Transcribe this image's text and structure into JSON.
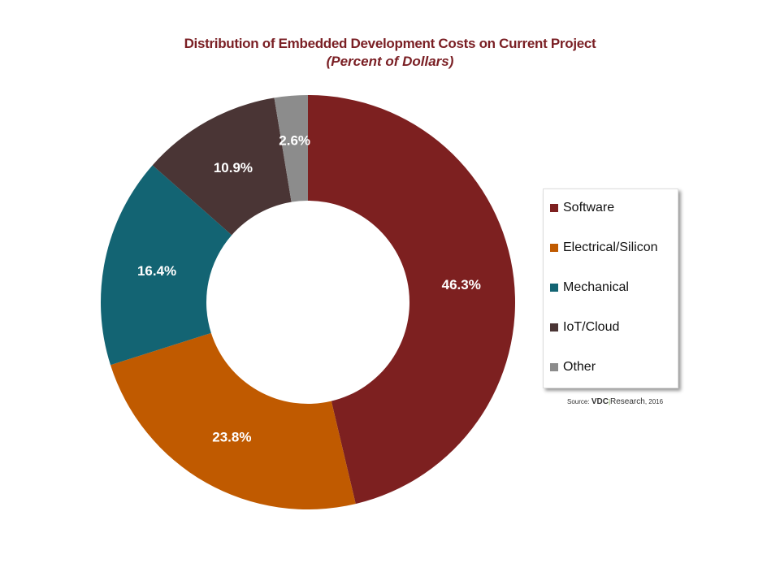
{
  "chart_data": {
    "type": "pie",
    "donut": true,
    "title": "Distribution of Embedded Development Costs on Current Project",
    "subtitle": "(Percent of Dollars)",
    "categories": [
      "Software",
      "Electrical/Silicon",
      "Mechanical",
      "IoT/Cloud",
      "Other"
    ],
    "values": [
      46.3,
      23.8,
      16.4,
      10.9,
      2.6
    ],
    "labels": [
      "46.3%",
      "23.8%",
      "16.4%",
      "10.9%",
      "2.6%"
    ],
    "colors": [
      "#7d2020",
      "#c05a00",
      "#136473",
      "#4a3535",
      "#8c8c8c"
    ],
    "legend_position": "right",
    "source": {
      "prefix": "Source:",
      "brand1": "VDC",
      "brand2": "Research",
      "year": ", 2016"
    }
  }
}
